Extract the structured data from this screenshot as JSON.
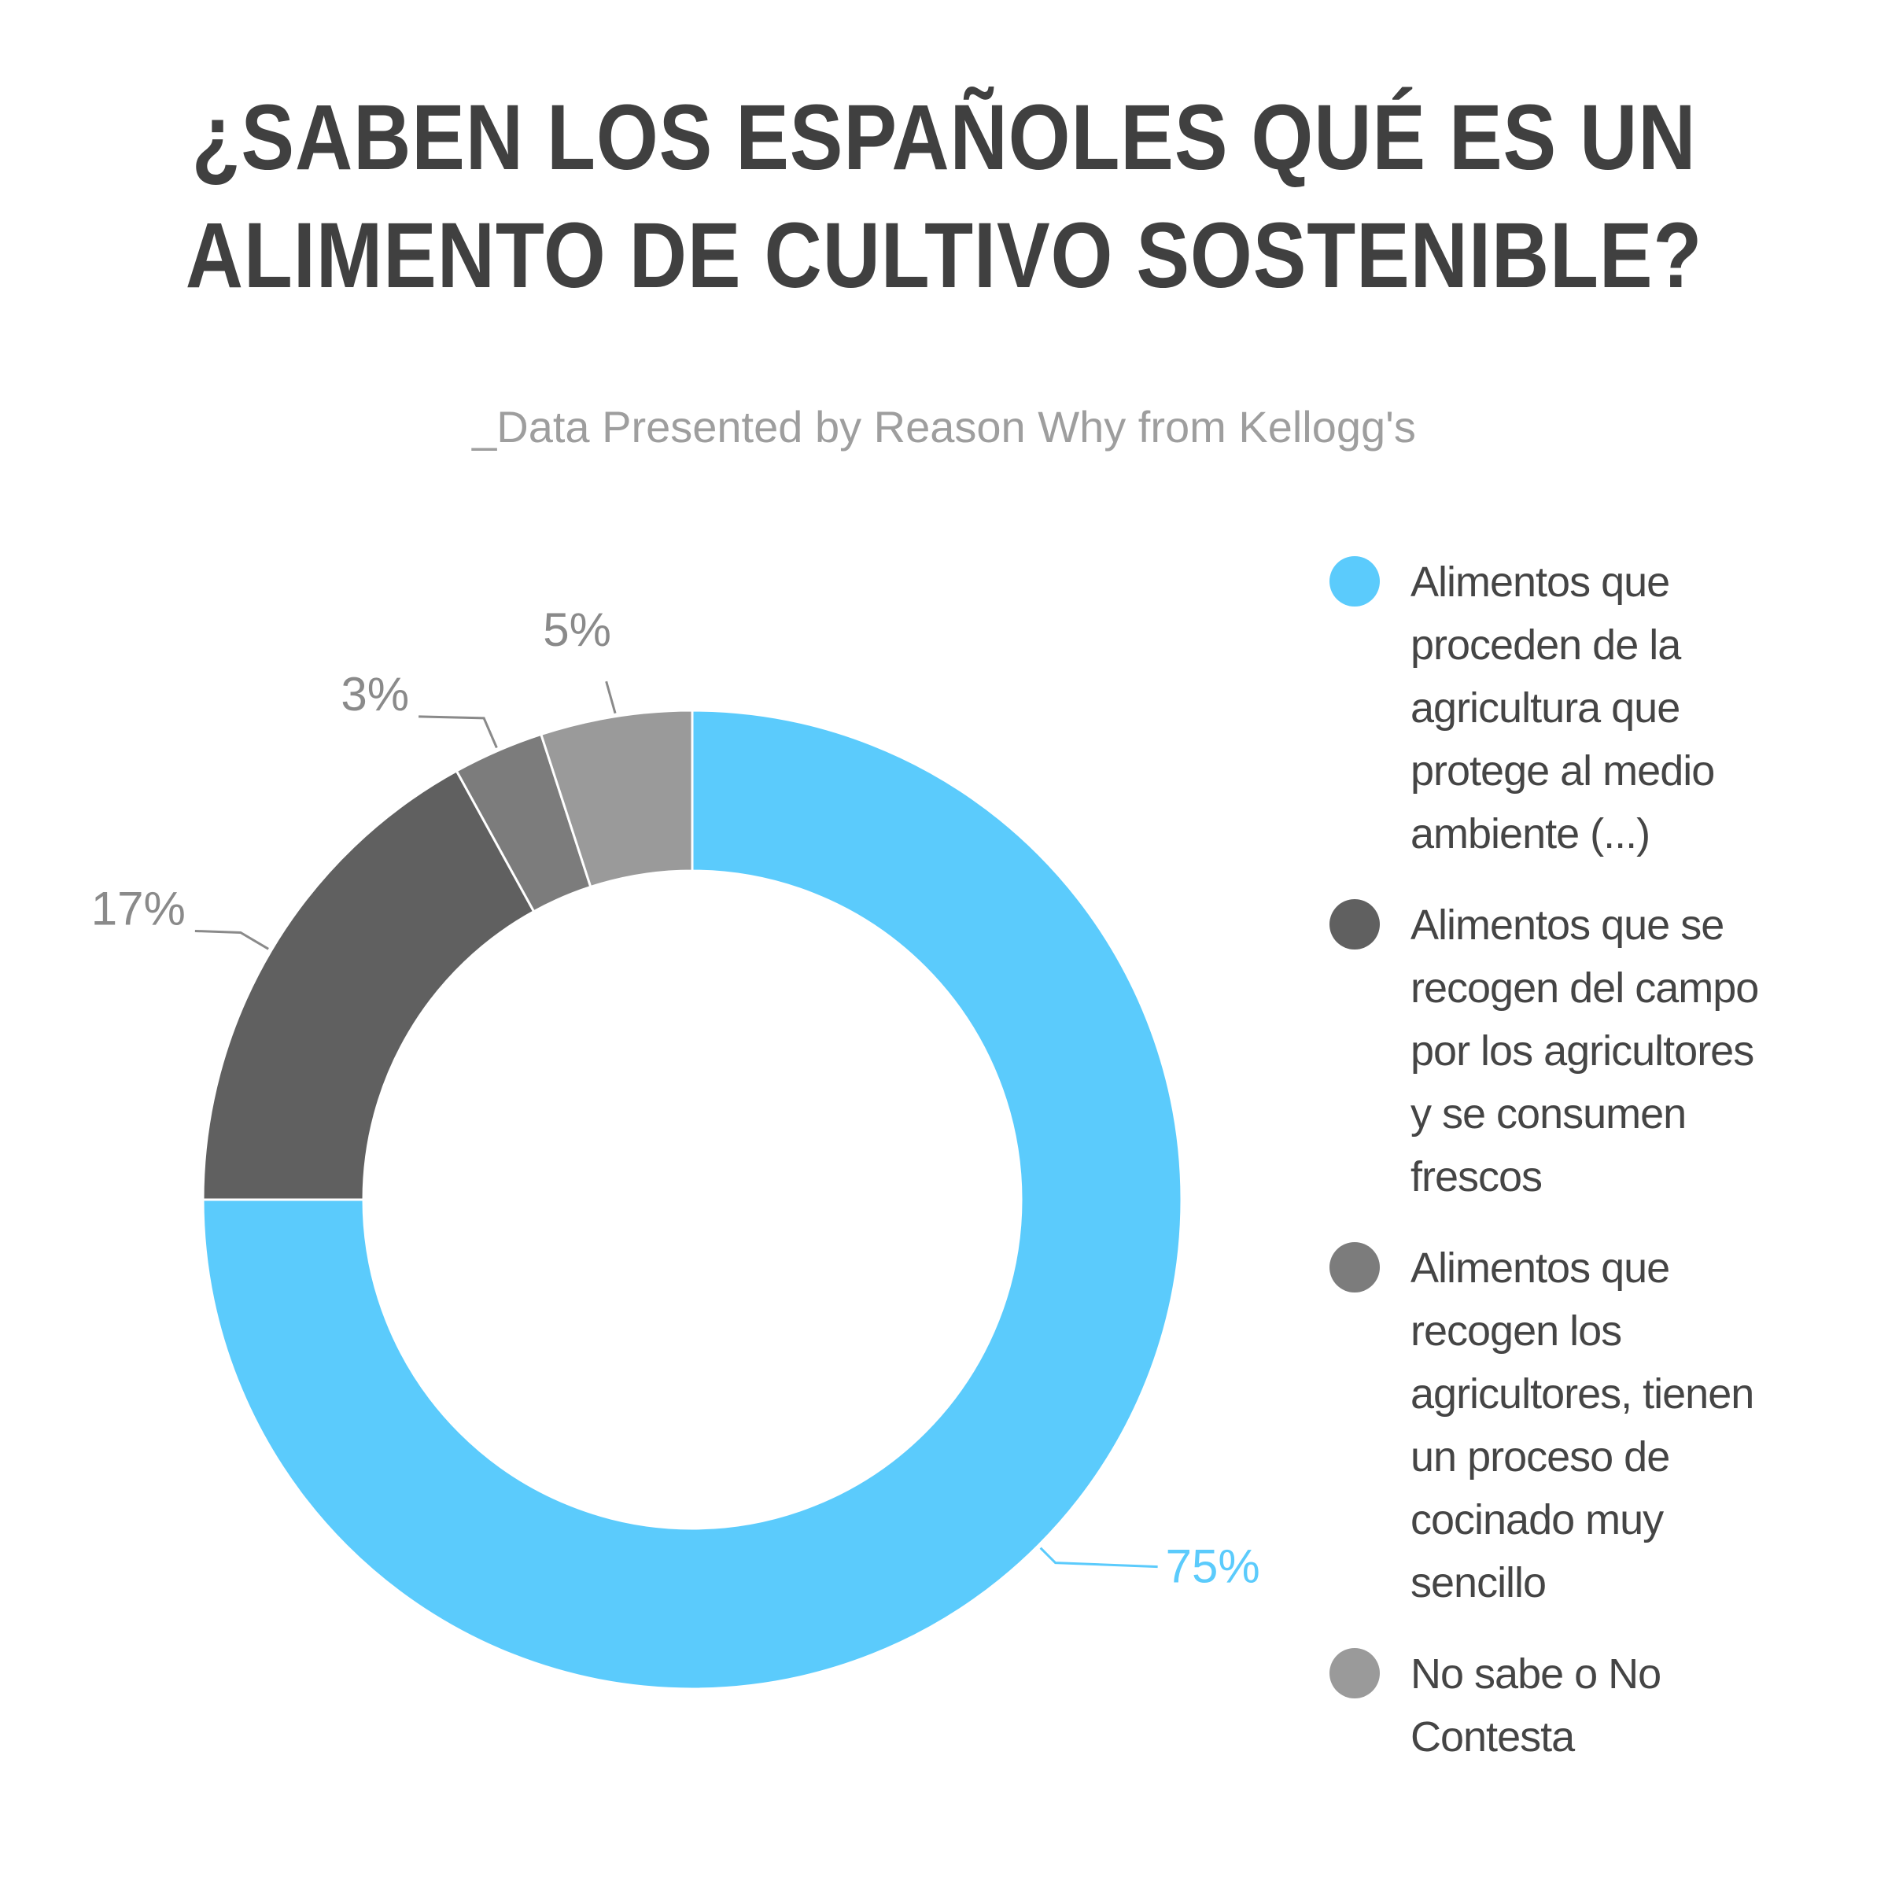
{
  "title_lines": [
    "¿SABEN LOS ESPAÑOLES QUÉ ES UN",
    "ALIMENTO DE CULTIVO SOSTENIBLE?"
  ],
  "subtitle": "_Data Presented by Reason Why from Kellogg's",
  "chart_data": {
    "type": "pie",
    "variant": "donut",
    "title": "¿SABEN LOS ESPAÑOLES QUÉ ES UN ALIMENTO DE CULTIVO SOSTENIBLE?",
    "subtitle": "_Data Presented by Reason Why from Kellogg's",
    "unit": "%",
    "start_angle": "12 o'clock",
    "direction": "clockwise",
    "legend_position": "right",
    "slices": [
      {
        "label": "Alimentos que proceden de la agricultura que protege al medio ambiente (...)",
        "value": 75,
        "display": "75%",
        "color": "#5BCBFC"
      },
      {
        "label": "Alimentos que se recogen del campo por los agricultores y se consumen frescos",
        "value": 17,
        "display": "17%",
        "color": "#606060"
      },
      {
        "label": "Alimentos que recogen los agricultores, tienen un proceso de cocinado muy sencillo",
        "value": 3,
        "display": "3%",
        "color": "#7c7c7c"
      },
      {
        "label": "No sabe o No Contesta",
        "value": 5,
        "display": "5%",
        "color": "#9a9a9a"
      }
    ]
  },
  "legend": [
    {
      "lines": [
        "Alimentos que",
        "proceden de la",
        "agricultura que",
        "protege al medio",
        "ambiente (...)"
      ],
      "color": "#5BCBFC"
    },
    {
      "lines": [
        "Alimentos que se",
        "recogen del campo",
        "por los agricultores",
        "y se consumen",
        "frescos"
      ],
      "color": "#606060"
    },
    {
      "lines": [
        "Alimentos que",
        "recogen los",
        "agricultores, tienen",
        "un proceso de",
        "cocinado muy",
        "sencillo"
      ],
      "color": "#7c7c7c"
    },
    {
      "lines": [
        "No sabe o No",
        "Contesta"
      ],
      "color": "#9a9a9a"
    }
  ],
  "label_color_highlight": "#5BCBFC",
  "label_color_muted": "#8a8a8a"
}
